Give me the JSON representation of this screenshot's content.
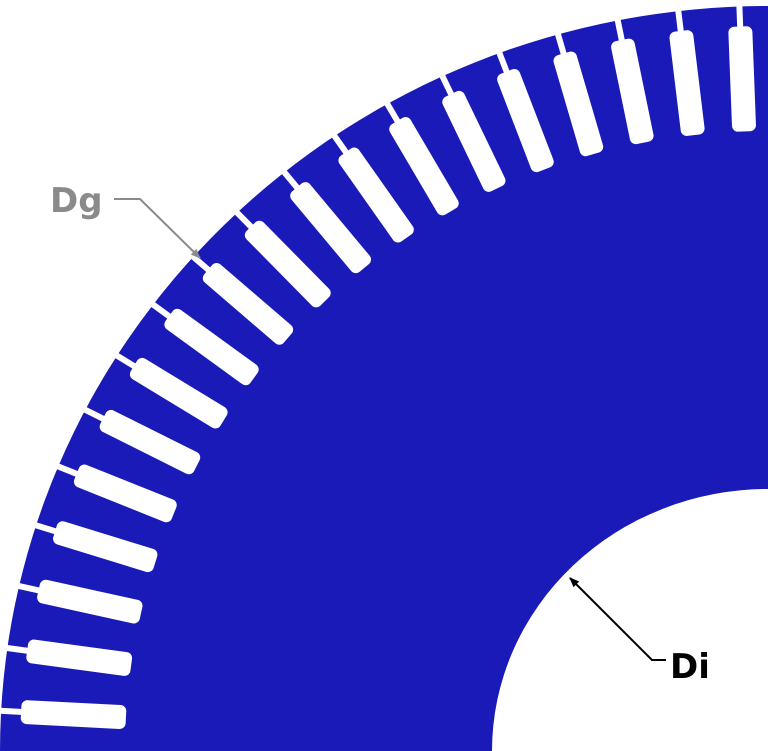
{
  "labels": {
    "outer": "Dg",
    "inner": "Di"
  },
  "colors": {
    "lamination": "#1a1ab8",
    "slot": "#ffffff",
    "background": "#ffffff",
    "outer_label": "#8a8a8a",
    "outer_arrow": "#8a8a8a",
    "inner_label": "#000000",
    "inner_arrow": "#000000"
  },
  "slot_count_visible": 19
}
